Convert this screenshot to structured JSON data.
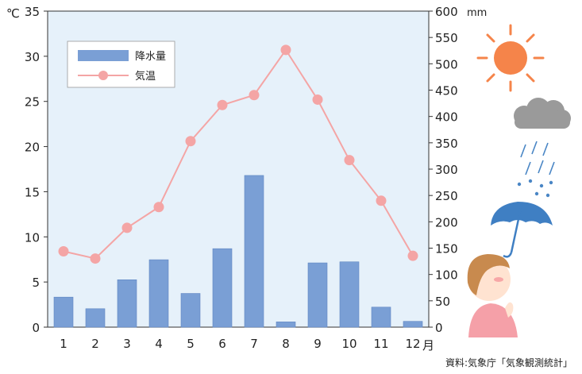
{
  "chart_data": {
    "type": "bar+line",
    "categories": [
      "1",
      "2",
      "3",
      "4",
      "5",
      "6",
      "7",
      "8",
      "9",
      "10",
      "11",
      "12"
    ],
    "x_unit_label": "月",
    "series": [
      {
        "name": "降水量",
        "type": "bar",
        "axis": "right",
        "values": [
          57,
          35,
          90,
          128,
          64,
          149,
          288,
          10,
          122,
          124,
          38,
          11
        ]
      },
      {
        "name": "気温",
        "type": "line",
        "axis": "left",
        "values": [
          8.4,
          7.6,
          11.0,
          13.3,
          20.6,
          24.6,
          25.7,
          30.7,
          25.2,
          18.5,
          14.0,
          7.9
        ]
      }
    ],
    "y_left": {
      "unit_label": "℃",
      "min": 0,
      "max": 35,
      "ticks": [
        "0",
        "5",
        "10",
        "15",
        "20",
        "25",
        "30",
        "35"
      ]
    },
    "y_right": {
      "unit_label": "mm",
      "min": 0,
      "max": 600,
      "ticks": [
        "0",
        "50",
        "100",
        "150",
        "200",
        "250",
        "300",
        "350",
        "400",
        "450",
        "500",
        "550",
        "600"
      ]
    },
    "legend_position": "top-left",
    "colors": {
      "bar": "#7a9fd5",
      "bar_stroke": "#5f86c2",
      "line": "#f4a5a5",
      "marker": "#f4a5a5",
      "plot_bg": "#e6f1fa"
    },
    "source": "資料:気象庁「気象観測統計」"
  }
}
